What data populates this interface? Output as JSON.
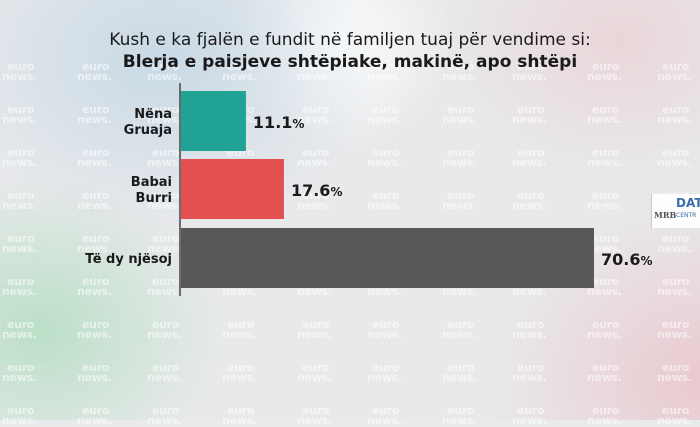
{
  "title": "Kush e ka fjalën e fundit në familjen tuaj për vendime si:",
  "subtitle": "Blerja e paisjeve shtëpiake, makinë, apo shtëpi",
  "watermark": {
    "line1": "euro",
    "line2": "news."
  },
  "logo": {
    "mrb": "MRB",
    "data": "DAT",
    "centre": "CENTR"
  },
  "colors": {
    "teal": "#20a294",
    "red": "#e2504f",
    "gray": "#585858",
    "axis": "#444444"
  },
  "chart_data": {
    "type": "bar",
    "orientation": "horizontal",
    "title": "Kush e ka fjalën e fundit në familjen tuaj për vendime si:",
    "subtitle": "Blerja e paisjeve shtëpiake, makinë, apo shtëpi",
    "categories": [
      [
        "Nëna",
        "Gruaja"
      ],
      [
        "Babai",
        "Burri"
      ],
      [
        "Të dy njësoj"
      ]
    ],
    "values": [
      11.1,
      17.6,
      70.6
    ],
    "value_labels": [
      "11.1",
      "17.6",
      "70.6"
    ],
    "unit": "%",
    "bar_colors": [
      "#20a294",
      "#e2504f",
      "#585858"
    ],
    "xlim": [
      0,
      70.6
    ],
    "grid": false,
    "legend": "none"
  }
}
